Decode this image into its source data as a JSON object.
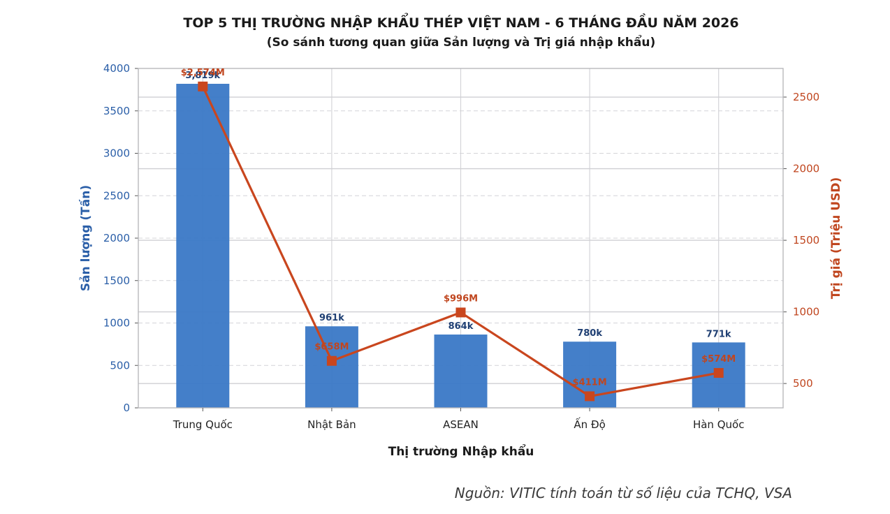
{
  "chart_data": {
    "type": "bar",
    "title": "TOP 5 THỊ TRƯỜNG NHẬP KHẨU THÉP VIỆT NAM - 6 THÁNG ĐẦU NĂM 2026",
    "subtitle": "(So sánh tương quan giữa Sản lượng và Trị giá nhập khẩu)",
    "xlabel": "Thị trường Nhập khẩu",
    "ylabel_left": "Sản lượng (Tấn)",
    "ylabel_right": "Trị giá (Triệu USD)",
    "categories": [
      "Trung Quốc",
      "Nhật Bản",
      "ASEAN",
      "Ấn Độ",
      "Hàn Quốc"
    ],
    "ylim_left": [
      0,
      4000
    ],
    "ylim_right": [
      330,
      2700
    ],
    "yticks_left": [
      0,
      500,
      1000,
      1500,
      2000,
      2500,
      3000,
      3500,
      4000
    ],
    "yticks_right": [
      500,
      1000,
      1500,
      2000,
      2500
    ],
    "grid": true,
    "series": [
      {
        "name": "Sản lượng",
        "type": "bar",
        "axis": "left",
        "values": [
          3819,
          961,
          864,
          780,
          771
        ],
        "labels": [
          "3,819k",
          "961k",
          "864k",
          "780k",
          "771k"
        ],
        "color": "#3a78c6"
      },
      {
        "name": "Trị giá",
        "type": "line",
        "axis": "right",
        "values": [
          2574,
          658,
          996,
          411,
          574
        ],
        "labels": [
          "$2,574M",
          "$658M",
          "$996M",
          "$411M",
          "$574M"
        ],
        "color": "#c9461e"
      }
    ]
  },
  "source_note": "Nguồn: VITIC tính toán từ số liệu của TCHQ, VSA"
}
